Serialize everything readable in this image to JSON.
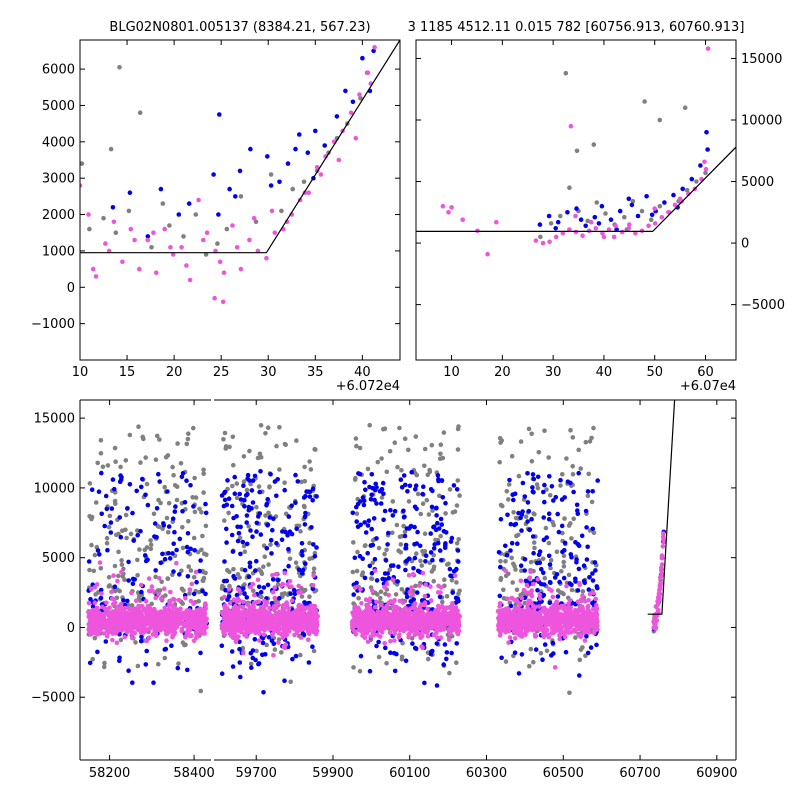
{
  "figure": {
    "title_left": "BLG02N0801.005137 (8384.21, 567.23)",
    "title_right": "3 1185 4512.11 0.015 782 [60756.913, 60760.913]"
  },
  "colors": {
    "gray": "#808080",
    "blue": "#0000ee",
    "pink": "#ee55dd",
    "model": "#000000"
  },
  "chart_data": [
    {
      "id": "top-left",
      "type": "scatter",
      "title": "BLG02N0801.005137 (8384.21, 567.23)",
      "xlim": [
        10,
        44
      ],
      "ylim": [
        -2000,
        6800
      ],
      "x_offset_label": "+6.072e4",
      "xticks": [
        10,
        15,
        20,
        25,
        30,
        35,
        40
      ],
      "xtick_labels": [
        "10",
        "15",
        "20",
        "25",
        "30",
        "35",
        "40"
      ],
      "yticks": [
        -1000,
        0,
        1000,
        2000,
        3000,
        4000,
        5000,
        6000
      ],
      "ytick_labels": [
        "−1000",
        "0",
        "1000",
        "2000",
        "3000",
        "4000",
        "5000",
        "6000"
      ],
      "y_axis_side": "left",
      "model_line": {
        "x": [
          10,
          29.8,
          44
        ],
        "y": [
          950,
          950,
          6800
        ]
      },
      "series": [
        {
          "name": "gray",
          "color": "#808080",
          "x": [
            10.2,
            11.0,
            12.5,
            13.3,
            13.8,
            14.2,
            15.2,
            16.4,
            17.6,
            18.8,
            19.5,
            21.0,
            22.3,
            23.4,
            24.6,
            25.6,
            27.1,
            28.7,
            30.3,
            31.4,
            32.6,
            33.8,
            35.2,
            36.4,
            37.3,
            38.4,
            39.8,
            40.5
          ],
          "y": [
            3400,
            1600,
            1900,
            3800,
            1500,
            6050,
            2100,
            4800,
            1100,
            2300,
            1700,
            1400,
            2000,
            900,
            1200,
            1600,
            2500,
            1800,
            3100,
            2100,
            2700,
            2900,
            3200,
            3700,
            4100,
            4500,
            5200,
            5900
          ]
        },
        {
          "name": "blue",
          "color": "#0000ee",
          "x": [
            13.5,
            15.3,
            17.2,
            18.6,
            20.5,
            21.6,
            24.2,
            24.8,
            25.9,
            27.0,
            28.1,
            29.9,
            31.2,
            32.1,
            33.3,
            34.2,
            35.0,
            36.0,
            37.3,
            38.2,
            39.0,
            40.0,
            40.8,
            41.2,
            24.7,
            26.5,
            30.3,
            32.9,
            34.8
          ],
          "y": [
            2200,
            2600,
            1400,
            2700,
            2000,
            2300,
            3100,
            4750,
            2700,
            3200,
            3800,
            3600,
            2900,
            3400,
            4200,
            3700,
            4300,
            3900,
            4700,
            5400,
            5100,
            6300,
            5400,
            6500,
            2000,
            2500,
            2800,
            3800,
            3000
          ]
        },
        {
          "name": "pink",
          "color": "#ee55dd",
          "x": [
            10.0,
            10.9,
            11.7,
            12.7,
            13.6,
            14.5,
            15.4,
            16.3,
            17.2,
            18.1,
            19.0,
            19.9,
            20.8,
            21.7,
            22.6,
            23.5,
            24.4,
            25.3,
            26.2,
            27.1,
            28.0,
            28.9,
            29.8,
            30.7,
            31.6,
            32.5,
            33.4,
            34.3,
            35.2,
            36.1,
            37.0,
            37.9,
            38.8,
            39.7,
            40.6,
            41.3,
            11.4,
            13.1,
            15.8,
            17.8,
            19.6,
            21.3,
            23.1,
            24.9,
            26.7,
            28.5,
            30.4,
            32.0,
            33.9,
            35.6,
            37.5,
            39.3,
            40.9,
            24.3,
            25.2
          ],
          "y": [
            2800,
            2000,
            300,
            1200,
            1800,
            700,
            1600,
            500,
            1300,
            400,
            1600,
            900,
            1100,
            200,
            2400,
            1500,
            1000,
            400,
            1700,
            500,
            1300,
            1000,
            800,
            1500,
            1600,
            2000,
            2400,
            2600,
            3300,
            3600,
            4000,
            4300,
            4800,
            5300,
            5900,
            6600,
            500,
            1000,
            1300,
            1500,
            1100,
            600,
            1300,
            700,
            1100,
            1900,
            2100,
            1800,
            2600,
            3100,
            3500,
            4100,
            5600,
            -300,
            -400
          ]
        }
      ]
    },
    {
      "id": "top-right",
      "type": "scatter",
      "title": "3 1185 4512.11 0.015 782 [60756.913, 60760.913]",
      "xlim": [
        3,
        66
      ],
      "ylim": [
        -9500,
        16500
      ],
      "x_offset_label": "+6.07e4",
      "xticks": [
        10,
        20,
        30,
        40,
        50,
        60
      ],
      "xtick_labels": [
        "10",
        "20",
        "30",
        "40",
        "50",
        "60"
      ],
      "yticks": [
        -5000,
        0,
        5000,
        10000,
        15000
      ],
      "ytick_labels": [
        "−5000",
        "0",
        "5000",
        "10000",
        "15000"
      ],
      "y_axis_side": "right",
      "model_line": {
        "x": [
          3,
          49.6,
          66
        ],
        "y": [
          950,
          950,
          7800
        ]
      },
      "series": [
        {
          "name": "gray",
          "color": "#808080",
          "x": [
            27.5,
            29.6,
            31.4,
            33.2,
            35.0,
            36.8,
            38.6,
            40.3,
            42.1,
            44.0,
            45.7,
            47.5,
            49.3,
            51.0,
            52.8,
            54.7,
            56.4,
            58.2,
            60.0,
            32.5,
            34.7,
            48.0,
            51.0,
            56.0,
            38.0,
            44.5
          ],
          "y": [
            500,
            1600,
            2200,
            4500,
            2600,
            1800,
            3300,
            2400,
            1500,
            2100,
            3400,
            2600,
            1900,
            3000,
            2500,
            3400,
            4300,
            5000,
            5700,
            13800,
            7500,
            11500,
            10000,
            11000,
            8000,
            1100
          ]
        },
        {
          "name": "blue",
          "color": "#0000ee",
          "x": [
            27.4,
            29.2,
            31.0,
            32.8,
            34.6,
            36.4,
            38.2,
            39.6,
            41.4,
            43.2,
            44.9,
            46.7,
            48.4,
            50.2,
            51.9,
            53.7,
            55.5,
            57.3,
            59.0,
            60.2,
            30.5,
            35.5,
            39.0,
            45.5,
            49.5,
            54.5,
            60.4,
            42.5
          ],
          "y": [
            1500,
            2200,
            1700,
            2500,
            2800,
            1400,
            2100,
            3000,
            1900,
            2600,
            3600,
            2200,
            3800,
            2600,
            3300,
            3900,
            4400,
            5200,
            6300,
            9000,
            1200,
            1900,
            1600,
            3100,
            2300,
            2900,
            7600,
            1100
          ]
        },
        {
          "name": "pink",
          "color": "#ee55dd",
          "x": [
            8.3,
            9.4,
            10.0,
            12.2,
            15.1,
            17.1,
            18.8,
            26.6,
            28.0,
            29.3,
            30.6,
            31.9,
            33.2,
            34.5,
            35.8,
            37.1,
            38.4,
            39.7,
            41.0,
            42.3,
            43.6,
            44.9,
            46.2,
            47.5,
            48.8,
            50.1,
            51.4,
            52.7,
            54.0,
            55.3,
            56.6,
            57.9,
            59.2,
            60.1,
            60.5,
            59.8,
            33.5,
            34.4,
            40.0,
            45.0,
            50.0,
            55.0,
            37.5,
            42.0
          ],
          "y": [
            3000,
            2500,
            2900,
            1900,
            1000,
            -900,
            1700,
            200,
            0,
            100,
            500,
            800,
            1100,
            900,
            600,
            1000,
            1200,
            800,
            1100,
            1400,
            900,
            1200,
            800,
            1000,
            1400,
            1600,
            2100,
            2500,
            3100,
            3400,
            4000,
            4400,
            5200,
            6000,
            15800,
            6600,
            9500,
            2200,
            500,
            1500,
            2800,
            3600,
            1700,
            500
          ]
        }
      ]
    },
    {
      "id": "bottom",
      "type": "scatter",
      "title": "",
      "y_axis_side": "left",
      "ylim": [
        -9500,
        16300
      ],
      "yticks": [
        -5000,
        0,
        5000,
        10000,
        15000
      ],
      "ytick_labels": [
        "−5000",
        "0",
        "5000",
        "10000",
        "15000"
      ],
      "segments": [
        {
          "xlim": [
            58130,
            58440
          ],
          "xticks": [
            58200,
            58400
          ],
          "xtick_labels": [
            "58200",
            "58400"
          ]
        },
        {
          "xlim": [
            59590,
            60950
          ],
          "xticks": [
            59700,
            59900,
            60100,
            60300,
            60500,
            60700,
            60900
          ],
          "xtick_labels": [
            "59700",
            "59900",
            "60100",
            "60300",
            "60500",
            "60700",
            "60900"
          ]
        }
      ],
      "model_line": {
        "x": [
          60720,
          60756.9,
          60790
        ],
        "y": [
          950,
          950,
          16300
        ]
      },
      "seasons": [
        {
          "x_range": [
            58150,
            58430
          ],
          "gray": 230,
          "blue": 160,
          "pink": 900
        },
        {
          "x_range": [
            59610,
            59860
          ],
          "gray": 210,
          "blue": 240,
          "pink": 800
        },
        {
          "x_range": [
            59950,
            60230
          ],
          "gray": 220,
          "blue": 260,
          "pink": 800
        },
        {
          "x_range": [
            60330,
            60590
          ],
          "gray": 200,
          "blue": 210,
          "pink": 780
        },
        {
          "x_range": [
            60735,
            60762
          ],
          "gray": 12,
          "blue": 6,
          "pink": 60
        }
      ]
    }
  ]
}
